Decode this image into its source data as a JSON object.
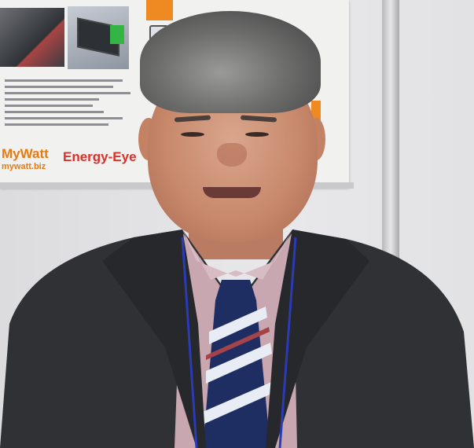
{
  "poster": {
    "brand": "MyWatt",
    "brand_url": "mywatt.biz",
    "product": "Energy-Eye"
  },
  "colors": {
    "brand_orange": "#e57b14",
    "product_red": "#d8332c",
    "suit": "#2f3134",
    "tie_navy": "#1e2e63",
    "lanyard": "#2b3bb4"
  }
}
